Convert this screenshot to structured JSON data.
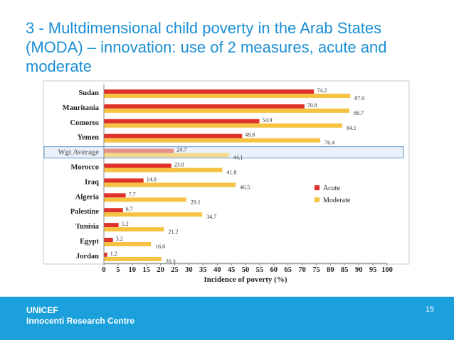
{
  "slide": {
    "title": "3 - Multdimensional child poverty in the Arab States (MODA) – innovation: use of 2 measures, acute and moderate",
    "page_number": "15"
  },
  "footer": {
    "org_line1": "UNICEF",
    "org_line2": "Innocenti Research Centre"
  },
  "colors": {
    "title": "#1a8fd4",
    "footer_bg": "#1ba0dc",
    "acute": "#e0302a",
    "moderate": "#f5c242",
    "acute_highlight": "#e8908a",
    "moderate_highlight": "#f3d98a",
    "highlight_border": "#7ea6d8",
    "highlight_fill": "#eaf1fb"
  },
  "chart_data": {
    "type": "bar",
    "orientation": "horizontal",
    "categories": [
      "Sudan",
      "Mauritania",
      "Comoros",
      "Yemen",
      "Wgt Average",
      "Morocco",
      "Iraq",
      "Algeria",
      "Palestine",
      "Tunisia",
      "Egypt",
      "Jordan"
    ],
    "highlight_category": "Wgt Average",
    "series": [
      {
        "name": "Acute",
        "values": [
          74.2,
          70.8,
          54.9,
          48.8,
          24.7,
          23.8,
          14.0,
          7.7,
          6.7,
          5.2,
          3.2,
          1.2
        ]
      },
      {
        "name": "Moderate",
        "values": [
          87.0,
          86.7,
          84.1,
          76.4,
          44.1,
          41.8,
          46.5,
          29.1,
          34.7,
          21.2,
          16.6,
          20.3
        ]
      }
    ],
    "value_labels": {
      "Acute": [
        "74.2",
        "70.8",
        "54.9",
        "48.8",
        "24.7",
        "23.8",
        "14.0",
        "7.7",
        "6.7",
        "5.2",
        "3.2",
        "1.2"
      ],
      "Moderate": [
        "87.0",
        "86.7",
        "84.1",
        "76.4",
        "44.1",
        "41.8",
        "46.5",
        "29.1",
        "34.7",
        "21.2",
        "16.6",
        "20.3"
      ]
    },
    "xlabel": "Incidence of poverty (%)",
    "xlim": [
      0,
      100
    ],
    "xticks": [
      "0",
      "5",
      "10",
      "15",
      "20",
      "25",
      "30",
      "35",
      "40",
      "45",
      "50",
      "55",
      "60",
      "65",
      "70",
      "75",
      "80",
      "85",
      "90",
      "95",
      "100"
    ],
    "legend_position": "right-middle"
  }
}
